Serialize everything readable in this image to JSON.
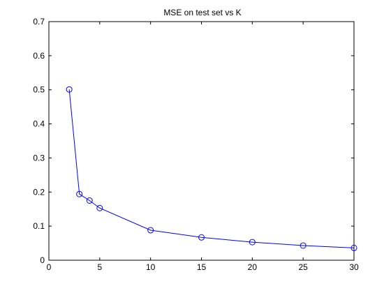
{
  "chart_data": {
    "type": "line",
    "title": "MSE on test set vs K",
    "xlabel": "",
    "ylabel": "",
    "xlim": [
      0,
      30
    ],
    "ylim": [
      0,
      0.7
    ],
    "xticks": [
      "0",
      "5",
      "10",
      "15",
      "20",
      "25",
      "30"
    ],
    "yticks": [
      "0",
      "0.1",
      "0.2",
      "0.3",
      "0.4",
      "0.5",
      "0.6",
      "0.7"
    ],
    "grid": false,
    "marker": "circle",
    "series": [
      {
        "x": [
          2,
          3,
          4,
          5,
          10,
          15,
          20,
          25,
          30
        ],
        "y": [
          0.501,
          0.194,
          0.175,
          0.153,
          0.088,
          0.067,
          0.053,
          0.043,
          0.036
        ]
      }
    ],
    "colors": {
      "line": "#0000ff",
      "axes": "#000000",
      "background": "#ffffff"
    }
  }
}
